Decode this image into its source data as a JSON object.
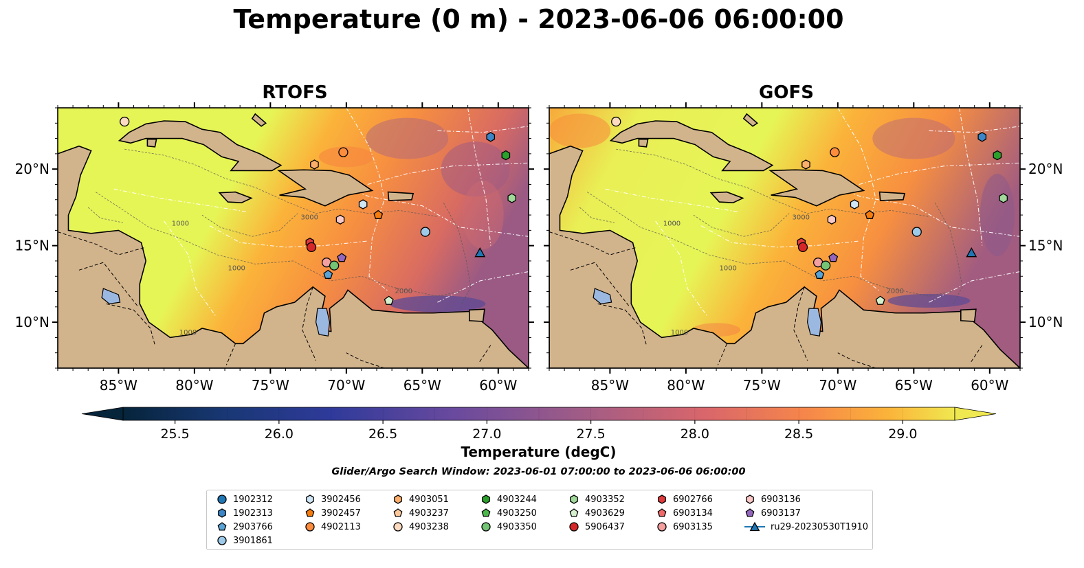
{
  "title": "Temperature (0 m) - 2023-06-06 06:00:00",
  "panels": [
    {
      "title": "RTOFS",
      "model": "rtofs"
    },
    {
      "title": "GOFS",
      "model": "gofs"
    }
  ],
  "map": {
    "lon_range": [
      -89,
      -58
    ],
    "lat_range": [
      7,
      24
    ],
    "lon_ticks": [
      "85°W",
      "80°W",
      "75°W",
      "70°W",
      "65°W",
      "60°W"
    ],
    "lat_ticks": [
      "10°N",
      "15°N",
      "20°N"
    ],
    "bathymetry_contour_labels": [
      "1000",
      "2000",
      "3000"
    ],
    "land_color": "#d2b48c",
    "lake_color": "#9bb8e0"
  },
  "colorbar": {
    "label": "Temperature (degC)",
    "min": 25.25,
    "max": 29.25,
    "step": 0.25,
    "extend": "both",
    "colormap": "thermal",
    "tick_labels": [
      "25.5",
      "26.0",
      "26.5",
      "27.0",
      "27.5",
      "28.0",
      "28.5",
      "29.0"
    ]
  },
  "search_window": "Glider/Argo Search Window: 2023-06-01 07:00:00 to 2023-06-06 06:00:00",
  "legend": [
    {
      "label": "1902312",
      "marker": "circle",
      "color": "#1f77b4"
    },
    {
      "label": "1902313",
      "marker": "hexagon",
      "color": "#3a86c8"
    },
    {
      "label": "2903766",
      "marker": "pentagon",
      "color": "#5aa3d6"
    },
    {
      "label": "3901861",
      "marker": "circle",
      "color": "#9ecae9"
    },
    {
      "label": "3902456",
      "marker": "hexagon",
      "color": "#cfe6f6"
    },
    {
      "label": "3902457",
      "marker": "pentagon",
      "color": "#f47c0c"
    },
    {
      "label": "4902113",
      "marker": "circle",
      "color": "#fd8d3c"
    },
    {
      "label": "4903051",
      "marker": "hexagon",
      "color": "#fdae6b"
    },
    {
      "label": "4903237",
      "marker": "pentagon",
      "color": "#fdc89a"
    },
    {
      "label": "4903238",
      "marker": "circle",
      "color": "#fddbc0"
    },
    {
      "label": "4903244",
      "marker": "hexagon",
      "color": "#2ca02c"
    },
    {
      "label": "4903250",
      "marker": "pentagon",
      "color": "#4cb84c"
    },
    {
      "label": "4903350",
      "marker": "circle",
      "color": "#74c476"
    },
    {
      "label": "4903352",
      "marker": "hexagon",
      "color": "#a1d99b"
    },
    {
      "label": "4903629",
      "marker": "pentagon",
      "color": "#d4f0cd"
    },
    {
      "label": "5906437",
      "marker": "circle",
      "color": "#d62728"
    },
    {
      "label": "6902766",
      "marker": "hexagon",
      "color": "#e03a3c"
    },
    {
      "label": "6903134",
      "marker": "pentagon",
      "color": "#f06a6a"
    },
    {
      "label": "6903135",
      "marker": "circle",
      "color": "#f4a0a0"
    },
    {
      "label": "6903136",
      "marker": "hexagon",
      "color": "#fbc8c8"
    },
    {
      "label": "6903137",
      "marker": "pentagon",
      "color": "#9467bd"
    },
    {
      "label": "ru29-20230530T1910",
      "marker": "triangle-line",
      "color": "#1f77b4"
    }
  ],
  "observations": [
    {
      "id": "4903238",
      "lon": -84.6,
      "lat": 23.1
    },
    {
      "id": "1902313",
      "lon": -60.5,
      "lat": 22.1
    },
    {
      "id": "4903244",
      "lon": -59.5,
      "lat": 20.9
    },
    {
      "id": "4902113",
      "lon": -70.2,
      "lat": 21.1
    },
    {
      "id": "4903051",
      "lon": -72.1,
      "lat": 20.3
    },
    {
      "id": "4903352",
      "lon": -59.1,
      "lat": 18.1
    },
    {
      "id": "3902456",
      "lon": -68.9,
      "lat": 17.7
    },
    {
      "id": "3902457",
      "lon": -67.9,
      "lat": 17.0
    },
    {
      "id": "6903136",
      "lon": -70.4,
      "lat": 16.7
    },
    {
      "id": "3901861",
      "lon": -64.8,
      "lat": 15.9
    },
    {
      "id": "6902766",
      "lon": -72.4,
      "lat": 15.2
    },
    {
      "id": "5906437",
      "lon": -72.3,
      "lat": 14.9
    },
    {
      "id": "6903137",
      "lon": -70.3,
      "lat": 14.2
    },
    {
      "id": "6903135",
      "lon": -71.3,
      "lat": 13.9
    },
    {
      "id": "4903350",
      "lon": -70.8,
      "lat": 13.7
    },
    {
      "id": "2903766",
      "lon": -71.2,
      "lat": 13.1
    },
    {
      "id": "4903629",
      "lon": -67.2,
      "lat": 11.4
    },
    {
      "id": "ru29-20230530T1910",
      "lon": -61.2,
      "lat": 14.5
    }
  ]
}
